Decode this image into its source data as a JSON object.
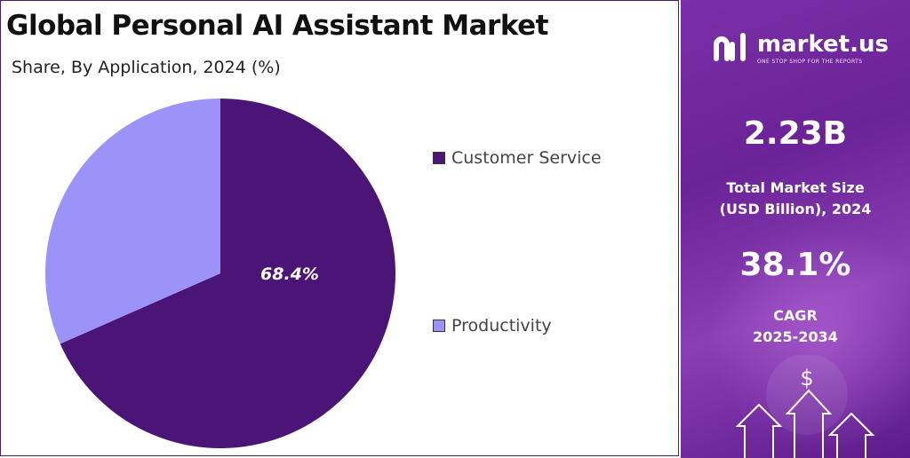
{
  "title": "Global Personal AI Assistant Market",
  "subtitle": "Share, By Application, 2024 (%)",
  "chart_data": {
    "type": "pie",
    "title": "Global Personal AI Assistant Market",
    "subtitle": "Share, By Application, 2024 (%)",
    "categories": [
      "Customer Service",
      "Productivity"
    ],
    "values": [
      68.4,
      31.6
    ],
    "colors": [
      "#4a1577",
      "#9b93f7"
    ],
    "data_labels": [
      "68.4%",
      ""
    ],
    "legend_position": "right"
  },
  "legend": [
    {
      "label": "Customer Service",
      "color": "#4a1577"
    },
    {
      "label": "Productivity",
      "color": "#9b93f7"
    }
  ],
  "sidebar": {
    "brand": "market.us",
    "tagline": "ONE STOP SHOP FOR THE REPORTS",
    "market_size_value": "2.23B",
    "market_size_label_line1": "Total Market Size",
    "market_size_label_line2": "(USD Billion), 2024",
    "cagr_value": "38.1%",
    "cagr_label_line1": "CAGR",
    "cagr_label_line2": "2025-2034",
    "currency_symbol": "$"
  }
}
